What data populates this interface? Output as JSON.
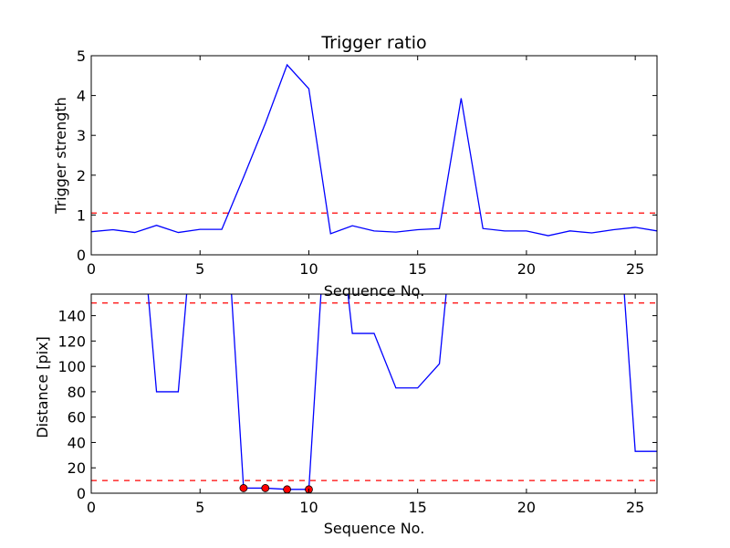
{
  "chart_data": [
    {
      "type": "line",
      "title": "Trigger ratio",
      "xlabel": "Sequence No.",
      "ylabel": "Trigger strength",
      "xlim": [
        0,
        26
      ],
      "ylim": [
        0,
        5
      ],
      "xticks": [
        0,
        5,
        10,
        15,
        20,
        25
      ],
      "yticks": [
        0,
        1,
        2,
        3,
        4,
        5
      ],
      "grid": false,
      "series": [
        {
          "color": "#0000ff",
          "x": [
            0,
            1,
            2,
            3,
            4,
            5,
            6,
            7,
            8,
            9,
            10,
            11,
            12,
            13,
            14,
            15,
            16,
            17,
            18,
            19,
            20,
            21,
            22,
            23,
            24,
            25,
            26
          ],
          "y": [
            0.58,
            0.63,
            0.56,
            0.74,
            0.56,
            0.64,
            0.64,
            1.95,
            3.3,
            4.77,
            4.17,
            0.53,
            0.73,
            0.6,
            0.57,
            0.63,
            0.66,
            3.93,
            0.66,
            0.6,
            0.6,
            0.48,
            0.6,
            0.55,
            0.63,
            0.69,
            0.6
          ]
        }
      ],
      "hlines": [
        {
          "y": 1.05,
          "color": "#ff0000",
          "style": "dashed"
        }
      ]
    },
    {
      "type": "line",
      "title": "",
      "xlabel": "Sequence No.",
      "ylabel": "Distance [pix]",
      "xlim": [
        0,
        26
      ],
      "ylim": [
        0,
        157
      ],
      "xticks": [
        0,
        5,
        10,
        15,
        20,
        25
      ],
      "yticks": [
        0,
        20,
        40,
        60,
        80,
        100,
        120,
        140
      ],
      "grid": false,
      "series": [
        {
          "color": "#0000ff",
          "x": [
            2,
            3,
            4,
            5,
            6,
            7,
            8,
            9,
            10,
            11,
            12,
            13,
            14,
            15,
            16,
            17,
            24,
            25,
            26
          ],
          "y": [
            280,
            80,
            80,
            280,
            280,
            4,
            4,
            3,
            3,
            280,
            126,
            126,
            83,
            83,
            102,
            280,
            280,
            33,
            33
          ]
        }
      ],
      "markers": {
        "color": "#ff0000",
        "x": [
          7,
          8,
          9,
          10
        ],
        "y": [
          4,
          4,
          3,
          3
        ]
      },
      "hlines": [
        {
          "y": 150,
          "color": "#ff0000",
          "style": "dashed"
        },
        {
          "y": 10,
          "color": "#ff0000",
          "style": "dashed"
        }
      ]
    }
  ]
}
